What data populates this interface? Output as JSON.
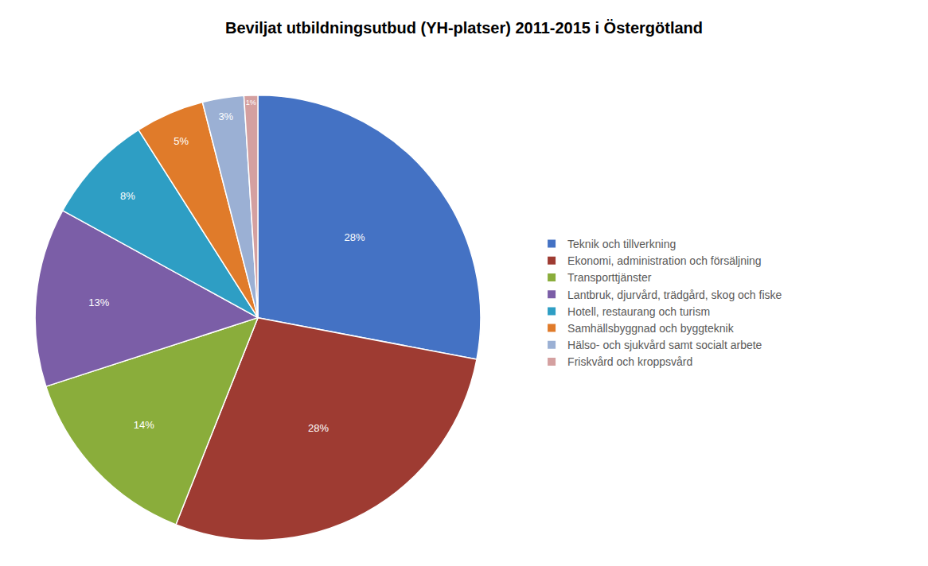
{
  "chart_data": {
    "type": "pie",
    "title": "Beviljat utbildningsutbud (YH-platser) 2011-2015 i Östergötland",
    "categories": [
      "Teknik och tillverkning",
      "Ekonomi, administration och försäljning",
      "Transporttjänster",
      "Lantbruk, djurvård, trädgård, skog och fiske",
      "Hotell, restaurang och turism",
      "Samhällsbyggnad och byggteknik",
      "Hälso- och sjukvård samt socialt arbete",
      "Friskvård och kroppsvård"
    ],
    "values": [
      28,
      28,
      14,
      13,
      8,
      5,
      3,
      1
    ],
    "value_labels": [
      "28%",
      "28%",
      "14%",
      "13%",
      "8%",
      "5%",
      "3%",
      "1%"
    ],
    "colors": [
      "#4472C4",
      "#9E3B32",
      "#8AAD3B",
      "#7B5EA7",
      "#2E9EC4",
      "#E07B2A",
      "#9BB0D4",
      "#D4A0A0"
    ],
    "data_labels": true,
    "legend": "right"
  }
}
